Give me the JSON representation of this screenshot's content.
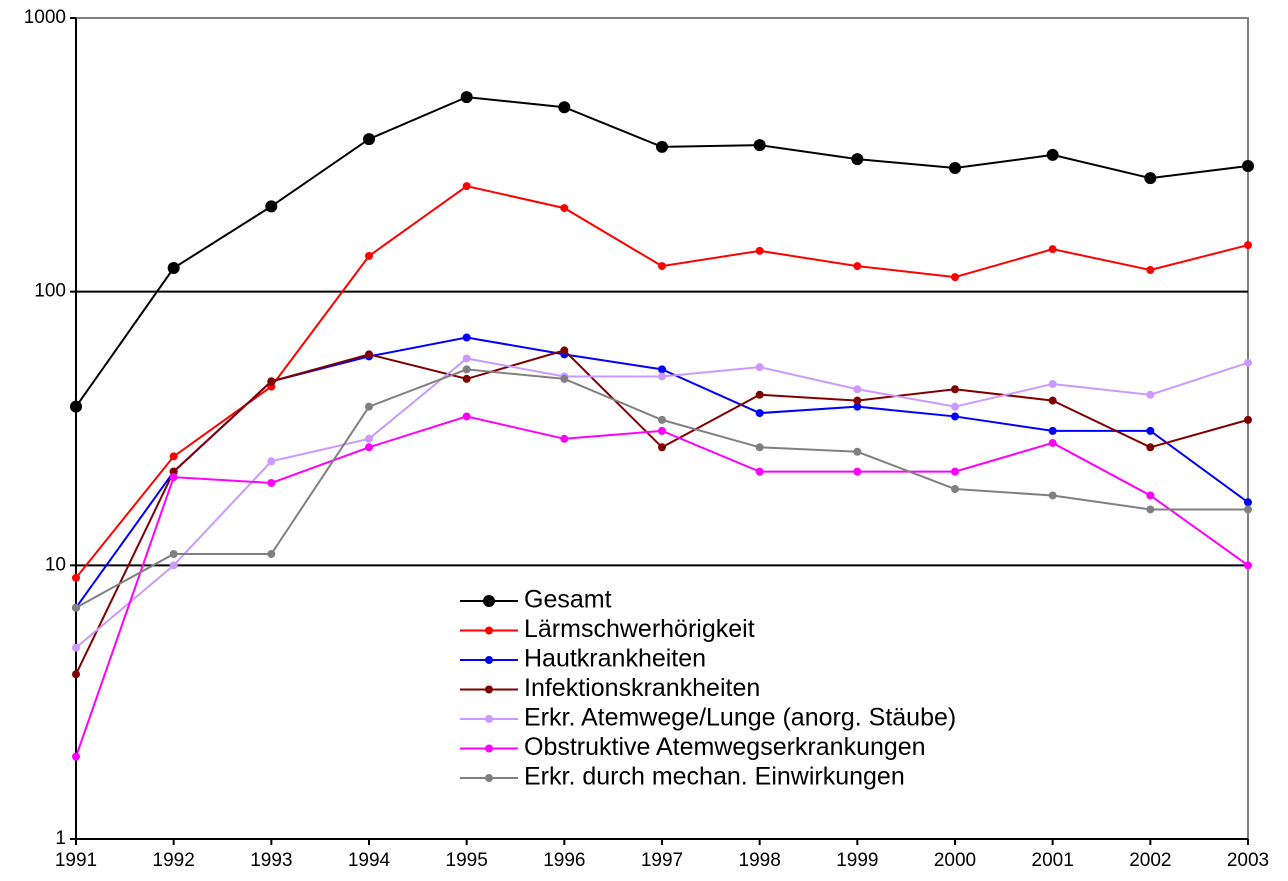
{
  "chart_data": {
    "type": "line",
    "x": [
      1991,
      1992,
      1993,
      1994,
      1995,
      1996,
      1997,
      1998,
      1999,
      2000,
      2001,
      2002,
      2003
    ],
    "xlim": [
      1991,
      2003
    ],
    "xticks": [
      1991,
      1992,
      1993,
      1994,
      1995,
      1996,
      1997,
      1998,
      1999,
      2000,
      2001,
      2002,
      2003
    ],
    "ylim": [
      1,
      1000
    ],
    "yticks": [
      1,
      10,
      100,
      1000
    ],
    "log_y": true,
    "grid": true,
    "series": [
      {
        "name": "Gesamt",
        "color": "#000000",
        "values": [
          38,
          122,
          205,
          361,
          514,
          472,
          338,
          343,
          305,
          283,
          316,
          260,
          288
        ]
      },
      {
        "name": "Lärmschwerhörigkeit",
        "color": "#ff0000",
        "values": [
          9,
          25,
          45,
          135,
          243,
          202,
          124,
          141,
          124,
          113,
          143,
          120,
          148
        ]
      },
      {
        "name": "Hautkrankheiten",
        "color": "#0000ff",
        "values": [
          7,
          22,
          47,
          58,
          68,
          59,
          52,
          36,
          38,
          35,
          31,
          31,
          17
        ]
      },
      {
        "name": "Infektionskrankheiten",
        "color": "#800000",
        "values": [
          4,
          22,
          47,
          59,
          48,
          61,
          27,
          42,
          40,
          44,
          40,
          27,
          34
        ]
      },
      {
        "name": "Erkr. Atemwege/Lunge (anorg. Stäube)",
        "color": "#cc99ff",
        "values": [
          5,
          10,
          24,
          29,
          57,
          49,
          49,
          53,
          44,
          38,
          46,
          42,
          55
        ]
      },
      {
        "name": "Obstruktive Atemwegserkrankungen",
        "color": "#ff00ff",
        "values": [
          2,
          21,
          20,
          27,
          35,
          29,
          31,
          22,
          22,
          22,
          28,
          18,
          10
        ]
      },
      {
        "name": "Erkr. durch mechan. Einwirkungen",
        "color": "#808080",
        "values": [
          7,
          11,
          11,
          38,
          52,
          48,
          34,
          27,
          26,
          19,
          18,
          16,
          16
        ]
      }
    ]
  }
}
